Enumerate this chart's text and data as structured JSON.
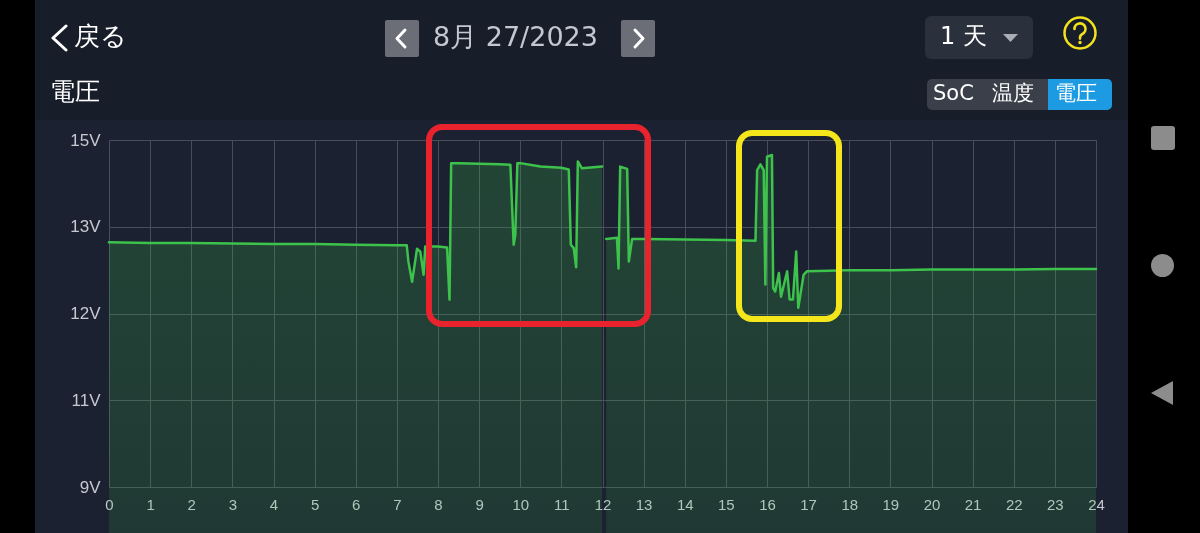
{
  "chart_data": {
    "type": "area",
    "title": "電圧",
    "annotations": [
      "戻る",
      "8月 27/2023",
      "1 天",
      "SoC",
      "温度",
      "電圧"
    ],
    "x": [
      0,
      1,
      2,
      3,
      4,
      5,
      6,
      7,
      7.24,
      7.28,
      7.37,
      7.49,
      7.57,
      7.65,
      7.69,
      8,
      8.22,
      8.28,
      8.32,
      8.5,
      9,
      9.5,
      9.76,
      9.84,
      9.88,
      9.93,
      10,
      10.49,
      11,
      11.18,
      11.23,
      11.3,
      11.36,
      11.4,
      11.5,
      11.99,
      12.04,
      12.09,
      12.35,
      12.39,
      12.43,
      12.6,
      12.64,
      12.72,
      13,
      14,
      15,
      15.72,
      15.76,
      15.84,
      15.92,
      15.96,
      16,
      16.12,
      16.15,
      16.2,
      16.29,
      16.34,
      16.49,
      16.55,
      16.63,
      16.71,
      16.76,
      16.89,
      16.97,
      17.5,
      18,
      19,
      20,
      21,
      22,
      23,
      24
    ],
    "series": [
      {
        "color": "#3dc24b",
        "values": [
          13.23,
          13.22,
          13.22,
          13.21,
          13.2,
          13.2,
          13.19,
          13.18,
          13.18,
          12.9,
          12.55,
          13.12,
          13.07,
          12.67,
          13.16,
          13.16,
          13.14,
          12.24,
          14.6,
          14.6,
          14.59,
          14.58,
          14.57,
          13.19,
          13.36,
          14.6,
          14.6,
          14.54,
          14.52,
          14.49,
          13.19,
          13.13,
          12.8,
          14.63,
          14.51,
          14.54,
          null,
          13.29,
          13.31,
          12.78,
          14.54,
          14.5,
          12.9,
          13.29,
          13.29,
          13.28,
          13.27,
          13.26,
          14.48,
          14.58,
          14.48,
          12.5,
          14.71,
          14.74,
          12.44,
          12.38,
          12.7,
          12.29,
          12.73,
          12.24,
          12.24,
          13.07,
          12.1,
          12.67,
          12.73,
          12.74,
          12.75,
          12.75,
          12.76,
          12.76,
          12.76,
          12.77,
          12.77
        ]
      }
    ],
    "xlim": [
      0,
      24
    ],
    "xticks": [
      0,
      1,
      2,
      3,
      4,
      5,
      6,
      7,
      8,
      9,
      10,
      11,
      12,
      13,
      14,
      15,
      16,
      17,
      18,
      19,
      20,
      21,
      22,
      23,
      24
    ],
    "ylim": [
      9,
      15
    ],
    "yticks": [
      {
        "value": 9,
        "label": "9V"
      },
      {
        "value": 10.5,
        "label": "11V"
      },
      {
        "value": 12,
        "label": "12V"
      },
      {
        "value": 13.5,
        "label": "13V"
      },
      {
        "value": 15,
        "label": "15V"
      }
    ],
    "grid": true
  }
}
